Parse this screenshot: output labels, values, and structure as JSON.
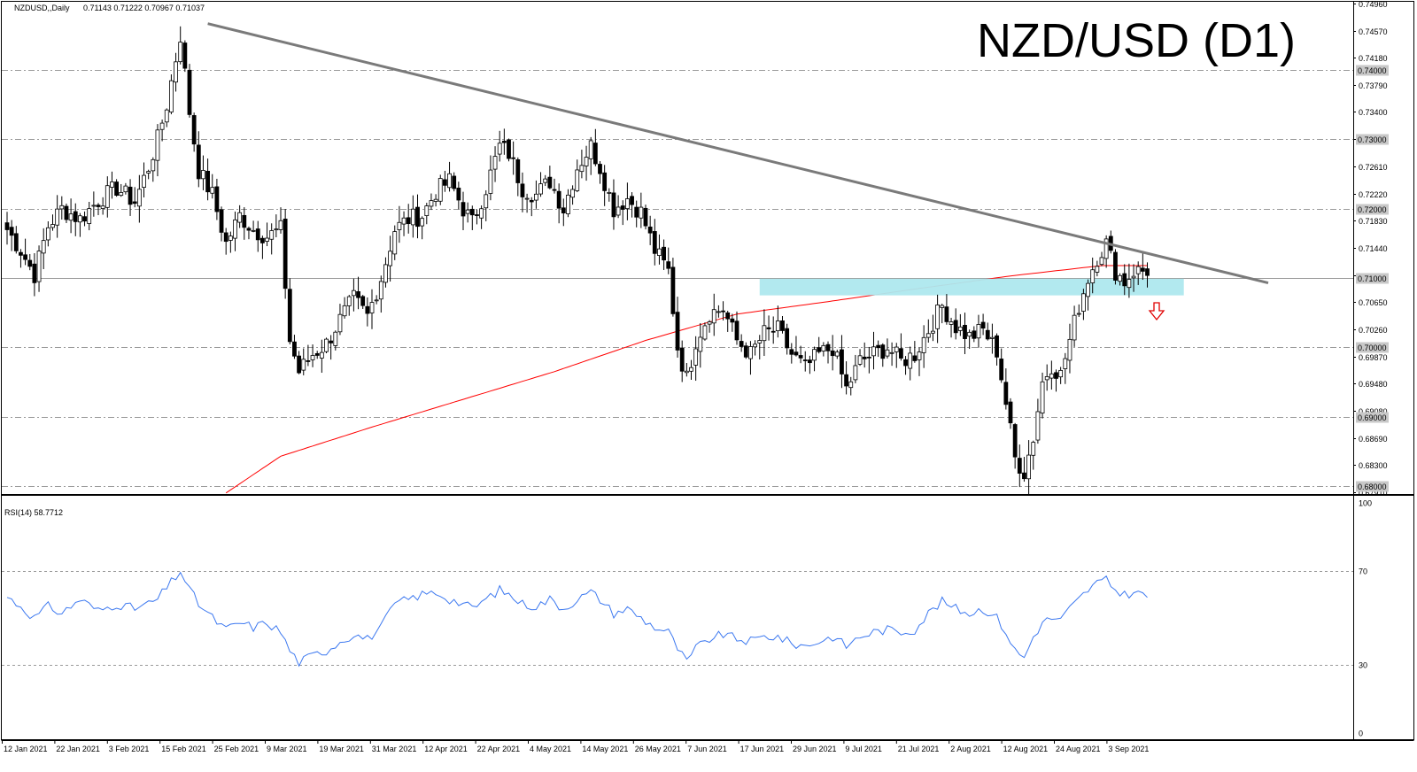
{
  "chart_data": [
    {
      "type": "candlestick",
      "symbol_header": "NZDUSD,,Daily",
      "ohlc_header": "0.71143 0.71222 0.70967 0.71037",
      "title": "NZD/USD (D1)",
      "ylim": [
        0.6791,
        0.7496
      ],
      "y_ticks": [
        "0.74960",
        "0.74570",
        "0.74180",
        "0.73790",
        "0.73400",
        "0.73010",
        "0.72610",
        "0.72220",
        "0.71830",
        "0.71440",
        "0.71040",
        "0.70650",
        "0.70260",
        "0.69870",
        "0.69480",
        "0.69080",
        "0.68690",
        "0.68300",
        "0.67910"
      ],
      "levels": [
        {
          "value": 0.74,
          "label": "0.74000"
        },
        {
          "value": 0.73,
          "label": "0.73000"
        },
        {
          "value": 0.72,
          "label": "0.72000"
        },
        {
          "value": 0.71,
          "label": "0.71000"
        },
        {
          "value": 0.7,
          "label": "0.70000"
        },
        {
          "value": 0.69,
          "label": "0.69000"
        },
        {
          "value": 0.68,
          "label": "0.68000"
        }
      ],
      "x_labels": [
        "12 Jan 2021",
        "22 Jan 2021",
        "3 Feb 2021",
        "15 Feb 2021",
        "25 Feb 2021",
        "9 Mar 2021",
        "19 Mar 2021",
        "31 Mar 2021",
        "12 Apr 2021",
        "22 Apr 2021",
        "4 May 2021",
        "14 May 2021",
        "26 May 2021",
        "7 Jun 2021",
        "17 Jun 2021",
        "29 Jun 2021",
        "9 Jul 2021",
        "21 Jul 2021",
        "2 Aug 2021",
        "12 Aug 2021",
        "24 Aug 2021",
        "3 Sep 2021"
      ],
      "trendline": {
        "start": 0.7467,
        "end": 0.7093
      },
      "support_zone": [
        0.7075,
        0.7099
      ],
      "moving_average_color": "#ff0000",
      "close_waypoints": [
        [
          0,
          0.717
        ],
        [
          3,
          0.714
        ],
        [
          6,
          0.7105
        ],
        [
          9,
          0.7175
        ],
        [
          12,
          0.72
        ],
        [
          16,
          0.7185
        ],
        [
          20,
          0.7212
        ],
        [
          24,
          0.723
        ],
        [
          28,
          0.721
        ],
        [
          31,
          0.726
        ],
        [
          33,
          0.73
        ],
        [
          35,
          0.735
        ],
        [
          38,
          0.745
        ],
        [
          40,
          0.734
        ],
        [
          42,
          0.7255
        ],
        [
          45,
          0.722
        ],
        [
          48,
          0.715
        ],
        [
          51,
          0.719
        ],
        [
          54,
          0.717
        ],
        [
          57,
          0.716
        ],
        [
          60,
          0.717
        ],
        [
          62,
          0.701
        ],
        [
          64,
          0.6965
        ],
        [
          67,
          0.699
        ],
        [
          70,
          0.7005
        ],
        [
          73,
          0.704
        ],
        [
          76,
          0.707
        ],
        [
          79,
          0.7045
        ],
        [
          82,
          0.71
        ],
        [
          85,
          0.717
        ],
        [
          88,
          0.7185
        ],
        [
          91,
          0.719
        ],
        [
          94,
          0.7225
        ],
        [
          97,
          0.724
        ],
        [
          100,
          0.72
        ],
        [
          102,
          0.718
        ],
        [
          105,
          0.723
        ],
        [
          108,
          0.729
        ],
        [
          110,
          0.728
        ],
        [
          113,
          0.723
        ],
        [
          116,
          0.722
        ],
        [
          119,
          0.724
        ],
        [
          122,
          0.72
        ],
        [
          125,
          0.726
        ],
        [
          128,
          0.729
        ],
        [
          130,
          0.726
        ],
        [
          133,
          0.72
        ],
        [
          136,
          0.7215
        ],
        [
          139,
          0.7195
        ],
        [
          142,
          0.714
        ],
        [
          145,
          0.711
        ],
        [
          147,
          0.7
        ],
        [
          149,
          0.6955
        ],
        [
          151,
          0.701
        ],
        [
          154,
          0.705
        ],
        [
          157,
          0.7055
        ],
        [
          160,
          0.701
        ],
        [
          163,
          0.699
        ],
        [
          166,
          0.702
        ],
        [
          169,
          0.7025
        ],
        [
          172,
          0.699
        ],
        [
          175,
          0.697
        ],
        [
          178,
          0.699
        ],
        [
          181,
          0.7
        ],
        [
          184,
          0.694
        ],
        [
          187,
          0.698
        ],
        [
          190,
          0.699
        ],
        [
          193,
          0.7
        ],
        [
          196,
          0.698
        ],
        [
          199,
          0.699
        ],
        [
          202,
          0.7025
        ],
        [
          205,
          0.706
        ],
        [
          208,
          0.703
        ],
        [
          211,
          0.7015
        ],
        [
          214,
          0.7025
        ],
        [
          217,
          0.6995
        ],
        [
          219,
          0.692
        ],
        [
          221,
          0.684
        ],
        [
          223,
          0.682
        ],
        [
          225,
          0.687
        ],
        [
          227,
          0.695
        ],
        [
          229,
          0.6975
        ],
        [
          231,
          0.696
        ],
        [
          233,
          0.701
        ],
        [
          235,
          0.706
        ],
        [
          237,
          0.71
        ],
        [
          239,
          0.713
        ],
        [
          241,
          0.715
        ],
        [
          243,
          0.711
        ],
        [
          245,
          0.7095
        ],
        [
          247,
          0.711
        ],
        [
          249,
          0.711
        ],
        [
          250,
          0.7104
        ]
      ],
      "rsi": {
        "label": "RSI(14) 58.7712",
        "ylim": [
          0,
          100
        ],
        "y_ticks": [
          "100",
          "70",
          "30",
          "0"
        ],
        "levels": [
          70,
          30
        ],
        "color": "#3c78f0",
        "waypoints": [
          [
            0,
            59
          ],
          [
            3,
            55
          ],
          [
            6,
            50
          ],
          [
            9,
            55
          ],
          [
            12,
            52
          ],
          [
            16,
            58
          ],
          [
            20,
            53
          ],
          [
            24,
            56
          ],
          [
            28,
            54
          ],
          [
            31,
            56
          ],
          [
            33,
            58
          ],
          [
            35,
            63
          ],
          [
            38,
            70
          ],
          [
            40,
            62
          ],
          [
            42,
            56
          ],
          [
            45,
            50
          ],
          [
            48,
            45
          ],
          [
            51,
            48
          ],
          [
            54,
            46
          ],
          [
            57,
            48
          ],
          [
            60,
            44
          ],
          [
            62,
            36
          ],
          [
            64,
            31
          ],
          [
            67,
            34
          ],
          [
            70,
            36
          ],
          [
            73,
            40
          ],
          [
            76,
            43
          ],
          [
            79,
            41
          ],
          [
            82,
            46
          ],
          [
            85,
            56
          ],
          [
            88,
            58
          ],
          [
            91,
            60
          ],
          [
            94,
            61
          ],
          [
            97,
            58
          ],
          [
            100,
            56
          ],
          [
            102,
            54
          ],
          [
            105,
            58
          ],
          [
            108,
            62
          ],
          [
            110,
            60
          ],
          [
            113,
            56
          ],
          [
            116,
            55
          ],
          [
            119,
            58
          ],
          [
            122,
            54
          ],
          [
            125,
            58
          ],
          [
            128,
            61
          ],
          [
            130,
            58
          ],
          [
            133,
            52
          ],
          [
            136,
            54
          ],
          [
            139,
            50
          ],
          [
            142,
            46
          ],
          [
            145,
            44
          ],
          [
            147,
            37
          ],
          [
            149,
            31
          ],
          [
            151,
            37
          ],
          [
            154,
            41
          ],
          [
            157,
            43
          ],
          [
            160,
            41
          ],
          [
            163,
            40
          ],
          [
            166,
            42
          ],
          [
            169,
            42
          ],
          [
            172,
            39
          ],
          [
            175,
            38
          ],
          [
            178,
            40
          ],
          [
            181,
            42
          ],
          [
            184,
            38
          ],
          [
            187,
            42
          ],
          [
            190,
            44
          ],
          [
            193,
            45
          ],
          [
            196,
            44
          ],
          [
            199,
            45
          ],
          [
            202,
            52
          ],
          [
            205,
            57
          ],
          [
            208,
            54
          ],
          [
            211,
            52
          ],
          [
            214,
            54
          ],
          [
            217,
            50
          ],
          [
            219,
            44
          ],
          [
            221,
            36
          ],
          [
            223,
            33
          ],
          [
            225,
            42
          ],
          [
            227,
            48
          ],
          [
            229,
            50
          ],
          [
            231,
            49
          ],
          [
            233,
            54
          ],
          [
            235,
            58
          ],
          [
            237,
            62
          ],
          [
            239,
            65
          ],
          [
            241,
            66
          ],
          [
            243,
            62
          ],
          [
            245,
            60
          ],
          [
            247,
            61
          ],
          [
            249,
            60
          ],
          [
            250,
            59
          ]
        ]
      }
    }
  ]
}
